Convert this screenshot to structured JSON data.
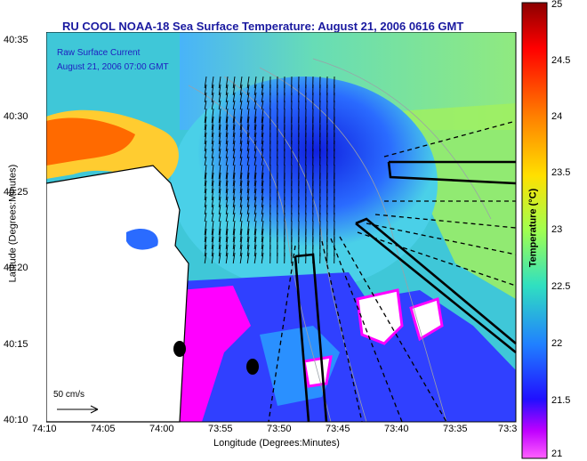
{
  "title": "RU COOL  NOAA-18  Sea Surface Temperature:  August 21, 2006 0616 GMT",
  "annotation_line1": "Raw Surface Current",
  "annotation_line2": "August 21, 2006 07:00 GMT",
  "xlabel": "Longitude (Degrees:Minutes)",
  "ylabel": "Latitude (Degrees:Minutes)",
  "colorbar_label": "Temperature (°C)",
  "scale_label": "50 cm/s",
  "x_ticks": [
    "74:10",
    "74:05",
    "74:00",
    "73:55",
    "73:50",
    "73:45",
    "73:40",
    "73:35",
    "73:3"
  ],
  "y_ticks": [
    "40:35",
    "40:30",
    "40:25",
    "40:20",
    "40:15",
    "40:10"
  ],
  "colorbar_ticks": [
    "25",
    "24.5",
    "24",
    "23.5",
    "23",
    "22.5",
    "22",
    "21.5",
    "21"
  ],
  "colors": {
    "title": "#1a1aa0",
    "ocean_mid": "#2040ff",
    "warm": "#ff6a00",
    "cool": "#ff00ff"
  }
}
